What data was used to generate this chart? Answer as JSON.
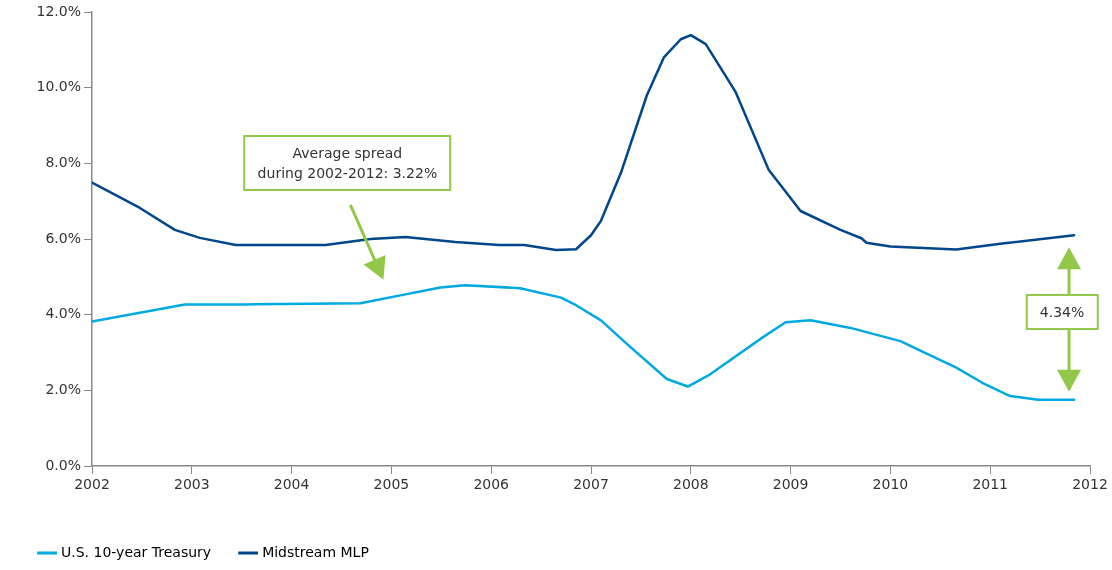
{
  "chart_data": {
    "type": "line",
    "xlim": [
      2002,
      2012
    ],
    "xticks": [
      2002,
      2003,
      2004,
      2005,
      2006,
      2007,
      2008,
      2009,
      2010,
      2011,
      2012
    ],
    "ylim": [
      0,
      12
    ],
    "yticks": [
      {
        "value": 0,
        "label": "0.0%"
      },
      {
        "value": 2,
        "label": "2.0%"
      },
      {
        "value": 4,
        "label": "4.0%"
      },
      {
        "value": 6,
        "label": "6.0%"
      },
      {
        "value": 8,
        "label": "8.0%"
      },
      {
        "value": 10,
        "label": "10.0%"
      },
      {
        "value": 12,
        "label": "12.0%"
      }
    ],
    "grid": false,
    "legend": "bottom left",
    "marker": "none",
    "line_style": "solid",
    "series": [
      {
        "name": "U.S. 10-year Treasury",
        "color": "#00a9e0",
        "x": [
          2002,
          2002.93,
          2003.54,
          2004.69,
          2005.09,
          2005.49,
          2005.74,
          2006.29,
          2006.7,
          2006.85,
          2007.1,
          2007.37,
          2007.76,
          2007.97,
          2008.18,
          2008.72,
          2008.95,
          2009.2,
          2009.6,
          2010.1,
          2010.3,
          2010.66,
          2010.92,
          2011.2,
          2011.48,
          2011.84
        ],
        "values": [
          3.82,
          4.27,
          4.27,
          4.3,
          4.51,
          4.72,
          4.78,
          4.7,
          4.45,
          4.25,
          3.85,
          3.2,
          2.3,
          2.1,
          2.4,
          3.4,
          3.8,
          3.85,
          3.65,
          3.3,
          3.05,
          2.6,
          2.2,
          1.85,
          1.75,
          1.75
        ]
      },
      {
        "name": "Midstream MLP",
        "color": "#00468b",
        "x": [
          2002,
          2002.48,
          2002.83,
          2003.08,
          2003.44,
          2004.34,
          2004.79,
          2005.14,
          2005.64,
          2006.08,
          2006.33,
          2006.65,
          2006.85,
          2007.0,
          2007.1,
          2007.3,
          2007.56,
          2007.73,
          2007.9,
          2008.0,
          2008.15,
          2008.45,
          2008.78,
          2009.1,
          2009.5,
          2009.71,
          2009.76,
          2010.0,
          2010.66,
          2011.12,
          2011.84
        ],
        "values": [
          7.49,
          6.82,
          6.24,
          6.03,
          5.84,
          5.84,
          6.0,
          6.05,
          5.92,
          5.84,
          5.84,
          5.71,
          5.73,
          6.1,
          6.48,
          7.75,
          9.8,
          10.8,
          11.28,
          11.39,
          11.15,
          9.88,
          7.83,
          6.74,
          6.24,
          6.02,
          5.9,
          5.8,
          5.72,
          5.88,
          6.1
        ]
      }
    ],
    "annotations": [
      "Average spread\nduring 2002-2012: 3.22%",
      "4.34%"
    ]
  }
}
